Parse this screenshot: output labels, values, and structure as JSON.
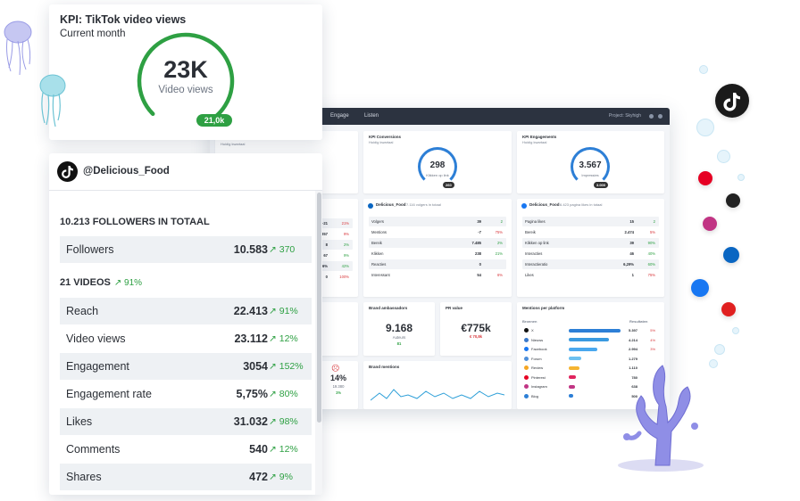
{
  "kpi_card": {
    "title": "KPI: TikTok video views",
    "subtitle": "Current month",
    "value": "23K",
    "value_label": "Video views",
    "target_badge": "21,0k",
    "progress_fraction": 0.9,
    "ring_color": "#2ea043"
  },
  "account_card": {
    "account_name": "@Delicious_Food",
    "followers_header": "10.213 FOLLOWERS IN TOTAAL",
    "followers_row": {
      "label": "Followers",
      "value": "10.583",
      "change": "370"
    },
    "videos_header": "21 VIDEOS",
    "videos_change": "91%",
    "rows": [
      {
        "label": "Reach",
        "value": "22.413",
        "change": "91%"
      },
      {
        "label": "Video views",
        "value": "23.112",
        "change": "12%"
      },
      {
        "label": "Engagement",
        "value": "3054",
        "change": "152%"
      },
      {
        "label": "Engagement rate",
        "value": "5,75%",
        "change": "80%"
      },
      {
        "label": "Likes",
        "value": "31.032",
        "change": "98%"
      },
      {
        "label": "Comments",
        "value": "540",
        "change": "12%"
      },
      {
        "label": "Shares",
        "value": "472",
        "change": "9%"
      }
    ],
    "up_arrow": "↗",
    "positive_color": "#2ea043"
  },
  "dashboard": {
    "nav": {
      "tab_engage": "Engage",
      "tab_listen": "Listen",
      "project": "Project: Skyhigh"
    },
    "cards": {
      "conversions": {
        "title": "KPI Conversions",
        "sub": "Huidig kwartaal",
        "value": "298",
        "label": "Klikken op link",
        "badge": "260"
      },
      "engagements": {
        "title": "KPI Engagements",
        "sub": "Huidig kwartaal",
        "value": "3.567",
        "label": "Impressies",
        "badge": "3.000"
      },
      "quarter_sub": "Huidig kwartaal",
      "linkedin": {
        "title": "Delicious_Food",
        "meta": "7.116 volgers in totaal",
        "rows": [
          {
            "l": "Volgers",
            "v": "39",
            "d": "2",
            "up": true
          },
          {
            "l": "Mentions",
            "v": "-7",
            "d": "75%",
            "up": false
          },
          {
            "l": "Bereik",
            "v": "7.485",
            "d": "2%",
            "up": true
          },
          {
            "l": "Klikken",
            "v": "238",
            "d": "21%",
            "up": true
          },
          {
            "l": "Reacties",
            "v": "0",
            "d": "",
            "up": true
          },
          {
            "l": "Interessant",
            "v": "54",
            "d": "6%",
            "up": false
          }
        ]
      },
      "facebook": {
        "title": "Delicious_Food",
        "meta": "6.423 pagina likes in totaal",
        "rows": [
          {
            "l": "Pagina likes",
            "v": "15",
            "d": "2",
            "up": true
          },
          {
            "l": "Bereik",
            "v": "2.474",
            "d": "5%",
            "up": false
          },
          {
            "l": "Klikken op link",
            "v": "39",
            "d": "90%",
            "up": true
          },
          {
            "l": "Interacties",
            "v": "46",
            "d": "40%",
            "up": true
          },
          {
            "l": "Interactieratio",
            "v": "6,29%",
            "d": "60%",
            "up": true
          },
          {
            "l": "Likes",
            "v": "1",
            "d": "75%",
            "up": false
          }
        ]
      },
      "left_rows": [
        {
          "v": "-21",
          "d": "21%",
          "up": false
        },
        {
          "v": "357",
          "d": "9%",
          "up": false
        },
        {
          "v": "8",
          "d": "2%",
          "up": true
        },
        {
          "v": "67",
          "d": "9%",
          "up": true
        },
        {
          "v": "36%",
          "d": "42%",
          "up": true
        },
        {
          "v": "0",
          "d": "100%",
          "up": false
        }
      ],
      "left_num": {
        "value": "0M",
        "label": "ews",
        "change": "2,7M"
      },
      "ambassadors": {
        "title": "Brand ambassadors",
        "value": "9.168",
        "label": "Auteurs",
        "change": "81"
      },
      "pr": {
        "title": "PR value",
        "value": "€775k",
        "change": "€ 70,8k"
      },
      "mentions_title": "Brand mentions",
      "sentiment": {
        "value": "14%",
        "count": "19.380",
        "change": "1%"
      },
      "platforms": {
        "title": "Mentions per platform",
        "col_source": "Bronnen",
        "col_results": "Resultaten",
        "rows": [
          {
            "name": "X",
            "value": "5.397",
            "d": "5%",
            "color": "#111111",
            "bar_color": "#2d7fd6",
            "share": 1.0
          },
          {
            "name": "Nieuws",
            "value": "4.214",
            "d": "4%",
            "color": "#3a78c9",
            "bar_color": "#3a9ae0",
            "share": 0.78
          },
          {
            "name": "Facebook",
            "value": "2.994",
            "d": "3%",
            "color": "#1877f2",
            "bar_color": "#4aa8ee",
            "share": 0.56
          },
          {
            "name": "Forum",
            "value": "1.279",
            "d": "",
            "color": "#4f8fd9",
            "bar_color": "#6cc0f0",
            "share": 0.24
          },
          {
            "name": "Review",
            "value": "1.110",
            "d": "",
            "color": "#f5a623",
            "bar_color": "#f5b431",
            "share": 0.2
          },
          {
            "name": "Pinterest",
            "value": "780",
            "d": "",
            "color": "#e60023",
            "bar_color": "#e0245e",
            "share": 0.14
          },
          {
            "name": "Instagram",
            "value": "638",
            "d": "",
            "color": "#c13584",
            "bar_color": "#c13584",
            "share": 0.12
          },
          {
            "name": "Blog",
            "value": "500",
            "d": "",
            "color": "#2d7fd6",
            "bar_color": "#2d7fd6",
            "share": 0.09
          }
        ]
      }
    }
  },
  "social_icons": [
    "tiktok-icon",
    "pinterest-icon",
    "x-icon",
    "instagram-icon",
    "linkedin-icon",
    "facebook-icon",
    "youtube-icon"
  ]
}
